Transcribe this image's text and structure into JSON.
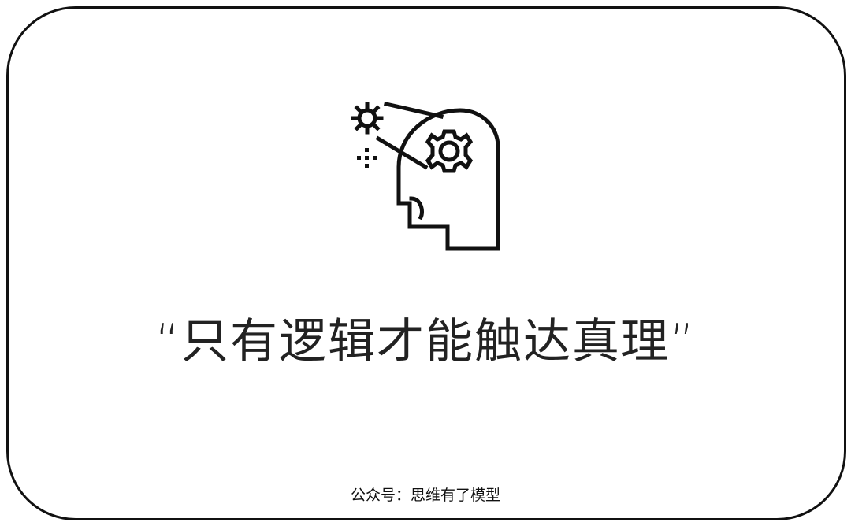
{
  "quote": {
    "text": "“只有逻辑才能触达真理”"
  },
  "footer": {
    "text": "公众号：思维有了模型"
  },
  "icon": {
    "name": "head-with-gear-icon",
    "color": "#111111"
  },
  "card": {
    "border_color": "#111111",
    "background": "#ffffff"
  }
}
